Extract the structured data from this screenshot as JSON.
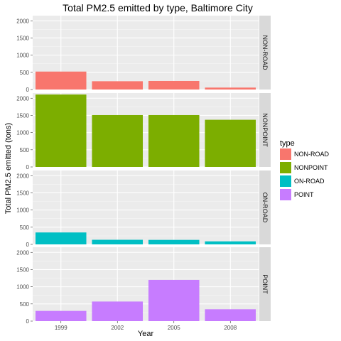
{
  "chart_data": {
    "type": "bar",
    "title": "Total PM2.5 emitted by type, Baltimore City",
    "xlabel": "Year",
    "ylabel": "Total PM2.5 emitted (tons)",
    "categories": [
      "1999",
      "2002",
      "2005",
      "2008"
    ],
    "ylim": [
      0,
      2150
    ],
    "yticks": [
      0,
      500,
      1000,
      1500,
      2000
    ],
    "yticklabels": [
      "0",
      "500",
      "1000",
      "1500",
      "2000"
    ],
    "grid": true,
    "legend": {
      "title": "type",
      "position": "right"
    },
    "series": [
      {
        "name": "NON-ROAD",
        "color": "#F8766D",
        "values": [
          522,
          241,
          249,
          56
        ]
      },
      {
        "name": "NONPOINT",
        "color": "#7CAE00",
        "values": [
          2108,
          1510,
          1510,
          1373
        ]
      },
      {
        "name": "ON-ROAD",
        "color": "#00BFC4",
        "values": [
          347,
          134,
          131,
          88
        ]
      },
      {
        "name": "POINT",
        "color": "#C77CFF",
        "values": [
          297,
          570,
          1200,
          345
        ]
      }
    ]
  }
}
